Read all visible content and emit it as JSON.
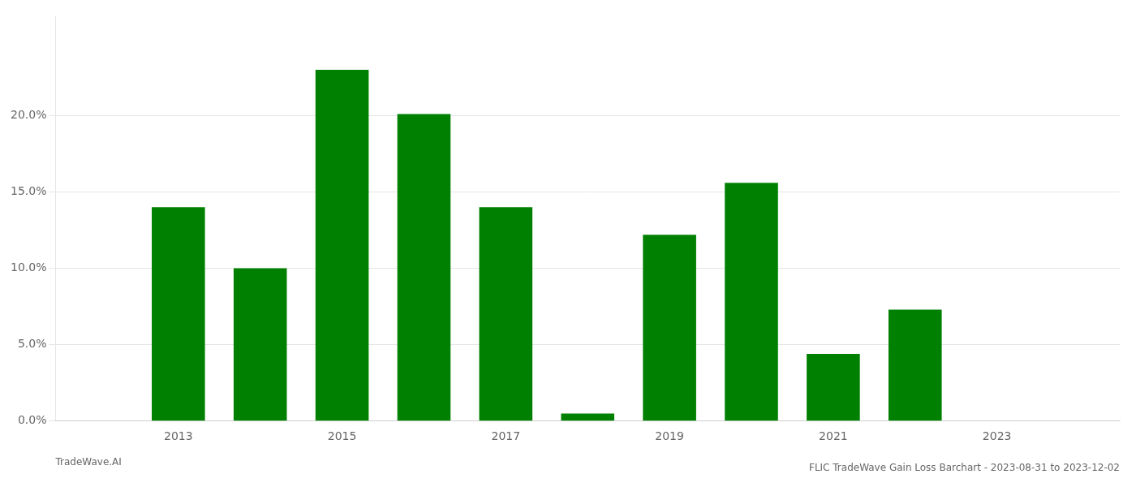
{
  "chart_data": {
    "type": "bar",
    "title": "FLIC TradeWave Gain Loss Barchart - 2023-08-31 to 2023-12-02",
    "annotations": [
      "TradeWave.AI"
    ],
    "x": [
      2013,
      2014,
      2015,
      2016,
      2017,
      2018,
      2019,
      2020,
      2021,
      2022,
      2023
    ],
    "values": [
      0.14,
      0.1,
      0.23,
      0.201,
      0.14,
      0.005,
      0.122,
      0.156,
      0.044,
      0.073,
      0.0
    ],
    "color": "#008000",
    "xlim": [
      2011.5,
      2024.5
    ],
    "xticks": [
      2013,
      2015,
      2017,
      2019,
      2021,
      2023
    ],
    "ylim": [
      0,
      0.265
    ],
    "yticks": [
      {
        "value": 0.0,
        "label": "0.0%"
      },
      {
        "value": 0.05,
        "label": "5.0%"
      },
      {
        "value": 0.1,
        "label": "10.0%"
      },
      {
        "value": 0.15,
        "label": "15.0%"
      },
      {
        "value": 0.2,
        "label": "20.0%"
      }
    ],
    "grid": "y",
    "legend": false
  }
}
